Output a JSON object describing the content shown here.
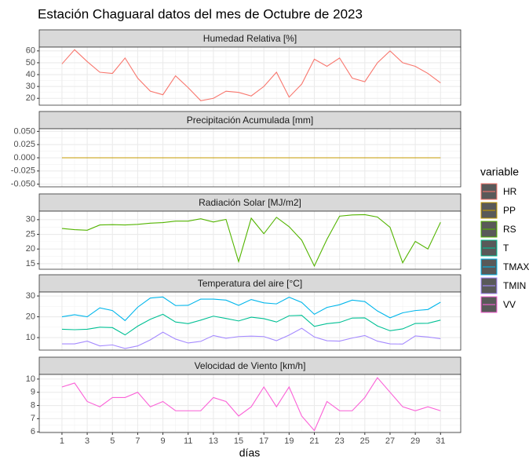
{
  "title": "Estación Chaguaral datos del mes de Octubre de 2023",
  "x_label": "días",
  "legend_title": "variable",
  "chart_data": [
    {
      "type": "line",
      "title": "Humedad Relativa [%]",
      "x": [
        1,
        2,
        3,
        4,
        5,
        6,
        7,
        8,
        9,
        10,
        11,
        12,
        13,
        14,
        15,
        16,
        17,
        18,
        19,
        20,
        21,
        22,
        23,
        24,
        25,
        26,
        27,
        28,
        29,
        30,
        31
      ],
      "xlim": [
        -0.8,
        32.6
      ],
      "xticks": [
        1,
        3,
        5,
        7,
        9,
        11,
        13,
        15,
        17,
        19,
        21,
        23,
        25,
        27,
        29,
        31
      ],
      "ylim": [
        14.2,
        63.2
      ],
      "yticks": [
        20,
        30,
        40,
        50,
        60
      ],
      "grid": true,
      "series": [
        {
          "name": "HR",
          "color": "#F8766D",
          "values": [
            49,
            61,
            51,
            42,
            41,
            54,
            37,
            26,
            23,
            39,
            29,
            18,
            20,
            26,
            25,
            22,
            30,
            42,
            21,
            32,
            53,
            47,
            54,
            37,
            34,
            50,
            60,
            50,
            47,
            41,
            33
          ]
        }
      ]
    },
    {
      "type": "line",
      "title": "Precipitación Acumulada [mm]",
      "x": [
        1,
        2,
        3,
        4,
        5,
        6,
        7,
        8,
        9,
        10,
        11,
        12,
        13,
        14,
        15,
        16,
        17,
        18,
        19,
        20,
        21,
        22,
        23,
        24,
        25,
        26,
        27,
        28,
        29,
        30,
        31
      ],
      "xlim": [
        -0.8,
        32.6
      ],
      "xticks": [
        1,
        3,
        5,
        7,
        9,
        11,
        13,
        15,
        17,
        19,
        21,
        23,
        25,
        27,
        29,
        31
      ],
      "ylim": [
        -0.055,
        0.055
      ],
      "yticks": [
        {
          "value": -0.05,
          "label": "-0.050"
        },
        {
          "value": -0.025,
          "label": "-0.025"
        },
        {
          "value": 0,
          "label": "0.000"
        },
        {
          "value": 0.025,
          "label": "0.025"
        },
        {
          "value": 0.05,
          "label": "0.050"
        }
      ],
      "grid": true,
      "series": [
        {
          "name": "PP",
          "color": "#C49A00",
          "values": [
            0,
            0,
            0,
            0,
            0,
            0,
            0,
            0,
            0,
            0,
            0,
            0,
            0,
            0,
            0,
            0,
            0,
            0,
            0,
            0,
            0,
            0,
            0,
            0,
            0,
            0,
            0,
            0,
            0,
            0,
            0
          ]
        }
      ]
    },
    {
      "type": "line",
      "title": "Radiación Solar [MJ/m2]",
      "x": [
        1,
        2,
        3,
        4,
        5,
        6,
        7,
        8,
        9,
        10,
        11,
        12,
        13,
        14,
        15,
        16,
        17,
        18,
        19,
        20,
        21,
        22,
        23,
        24,
        25,
        26,
        27,
        28,
        29,
        30,
        31
      ],
      "xlim": [
        -0.8,
        32.6
      ],
      "xticks": [
        1,
        3,
        5,
        7,
        9,
        11,
        13,
        15,
        17,
        19,
        21,
        23,
        25,
        27,
        29,
        31
      ],
      "ylim": [
        13.1,
        32.9
      ],
      "yticks": [
        15,
        20,
        25,
        30
      ],
      "grid": true,
      "series": [
        {
          "name": "RS",
          "color": "#53B400",
          "values": [
            27,
            26.6,
            26.4,
            28.2,
            28.3,
            28.2,
            28.4,
            28.8,
            29,
            29.5,
            29.5,
            30.3,
            29.2,
            30.1,
            15.7,
            30.5,
            25.2,
            30.8,
            27.6,
            23,
            14.2,
            23.3,
            31.2,
            31.6,
            31.7,
            30.9,
            27.4,
            15.3,
            22.6,
            20,
            29.1
          ]
        }
      ]
    },
    {
      "type": "line",
      "title": "Temperatura del aire [°C]",
      "x": [
        1,
        2,
        3,
        4,
        5,
        6,
        7,
        8,
        9,
        10,
        11,
        12,
        13,
        14,
        15,
        16,
        17,
        18,
        19,
        20,
        21,
        22,
        23,
        24,
        25,
        26,
        27,
        28,
        29,
        30,
        31
      ],
      "xlim": [
        -0.8,
        32.6
      ],
      "xticks": [
        1,
        3,
        5,
        7,
        9,
        11,
        13,
        15,
        17,
        19,
        21,
        23,
        25,
        27,
        29,
        31
      ],
      "ylim": [
        4,
        31.9
      ],
      "yticks": [
        10,
        20,
        30
      ],
      "grid": true,
      "series": [
        {
          "name": "T",
          "color": "#00C094",
          "values": [
            14,
            13.8,
            14,
            15,
            14.8,
            11.3,
            15.5,
            18.8,
            21.2,
            17.5,
            16.7,
            18.4,
            20.3,
            19.2,
            18,
            19.8,
            19.1,
            17.5,
            20.5,
            20.7,
            15.4,
            16.7,
            17.3,
            19.4,
            19.5,
            15.6,
            13.3,
            14.2,
            16.8,
            16.9,
            18.4
          ]
        },
        {
          "name": "TMAX",
          "color": "#00B6EB",
          "values": [
            20,
            21,
            20,
            24.3,
            23,
            18.2,
            24.6,
            29,
            29.5,
            25.4,
            25.5,
            28.5,
            28.5,
            28,
            25.5,
            28.3,
            26.7,
            26.2,
            29.4,
            26.9,
            21.2,
            24.5,
            25.8,
            28,
            27.3,
            22.8,
            19.5,
            21.9,
            23,
            23.5,
            27
          ]
        },
        {
          "name": "TMIN",
          "color": "#A58AFF",
          "values": [
            7,
            7,
            8.3,
            6,
            6.5,
            4.8,
            6,
            8.9,
            12.6,
            9.3,
            7.4,
            8.2,
            11,
            9.7,
            10.5,
            10.7,
            10.5,
            8.5,
            11.2,
            14.5,
            10.3,
            8.5,
            8.3,
            9.8,
            11,
            8.3,
            7,
            6.9,
            10.8,
            10.3,
            9.5
          ]
        }
      ]
    },
    {
      "type": "line",
      "title": "Velocidad de Viento [km/h]",
      "x": [
        1,
        2,
        3,
        4,
        5,
        6,
        7,
        8,
        9,
        10,
        11,
        12,
        13,
        14,
        15,
        16,
        17,
        18,
        19,
        20,
        21,
        22,
        23,
        24,
        25,
        26,
        27,
        28,
        29,
        30,
        31
      ],
      "xlim": [
        -0.8,
        32.6
      ],
      "xticks": [
        1,
        3,
        5,
        7,
        9,
        11,
        13,
        15,
        17,
        19,
        21,
        23,
        25,
        27,
        29,
        31
      ],
      "ylim": [
        5.95,
        10.35
      ],
      "yticks": [
        6,
        7,
        8,
        9,
        10
      ],
      "grid": true,
      "series": [
        {
          "name": "VV",
          "color": "#FB61D7",
          "values": [
            9.4,
            9.7,
            8.3,
            7.9,
            8.6,
            8.6,
            9,
            7.9,
            8.3,
            7.6,
            7.6,
            7.6,
            8.6,
            8.3,
            7.2,
            7.9,
            9.4,
            7.9,
            9.4,
            7.2,
            6.1,
            8.3,
            7.6,
            7.6,
            8.6,
            10.1,
            9,
            7.9,
            7.6,
            7.9,
            7.6
          ]
        }
      ]
    }
  ]
}
